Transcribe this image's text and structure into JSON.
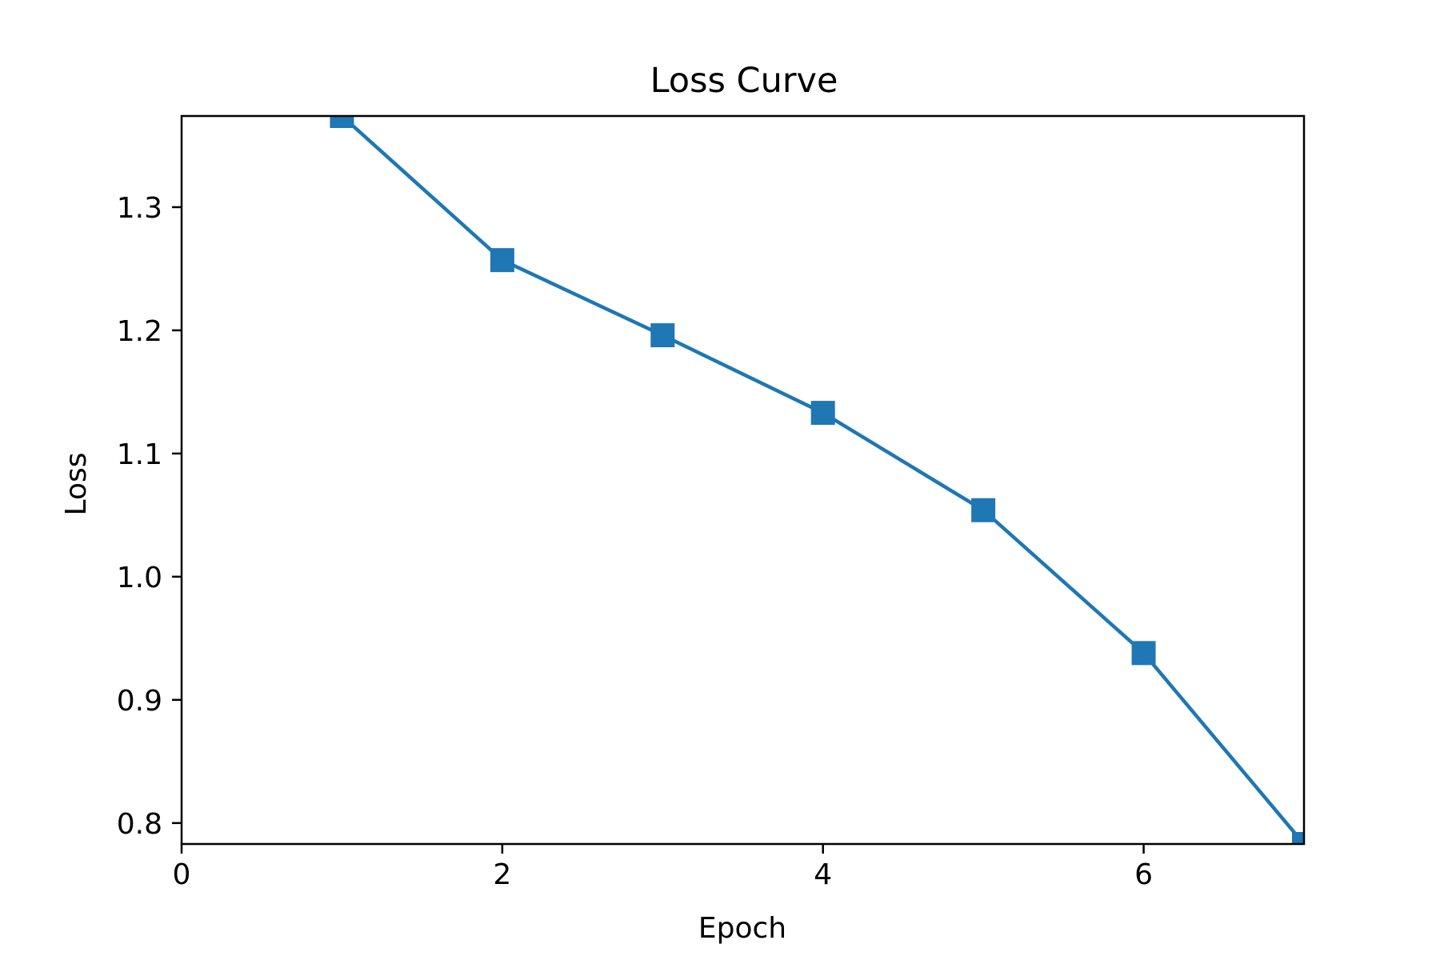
{
  "chart_data": {
    "type": "line",
    "title": "Loss Curve",
    "xlabel": "Epoch",
    "ylabel": "Loss",
    "xlim": [
      0,
      7
    ],
    "ylim": [
      0.783,
      1.374
    ],
    "xticks": [
      0,
      2,
      4,
      6
    ],
    "xtick_labels": [
      "0",
      "2",
      "4",
      "6"
    ],
    "yticks": [
      0.8,
      0.9,
      1.0,
      1.1,
      1.2,
      1.3
    ],
    "ytick_labels": [
      "0.8",
      "0.9",
      "1.0",
      "1.1",
      "1.2",
      "1.3"
    ],
    "grid": false,
    "marker": "square",
    "colors": {
      "series": "#1f77b4",
      "axes": "#000000",
      "background": "#ffffff"
    },
    "x": [
      1,
      2,
      3,
      4,
      5,
      6,
      7
    ],
    "series": [
      {
        "values": [
          1.374,
          1.257,
          1.196,
          1.133,
          1.054,
          0.938,
          0.783
        ]
      }
    ]
  }
}
